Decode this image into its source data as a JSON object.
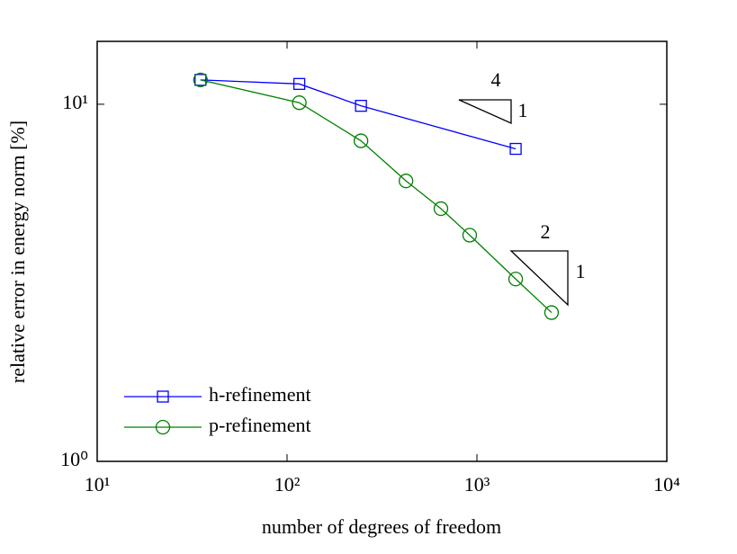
{
  "chart_data": {
    "type": "line",
    "x_label": "number of degrees of freedom",
    "y_label": "relative error in energy norm [%]",
    "log_x": true,
    "log_y": true,
    "grid": false,
    "legend": "lower left",
    "xlim": [
      10,
      10000
    ],
    "xticks": [
      {
        "value": 10,
        "label": "10¹"
      },
      {
        "value": 100,
        "label": "10²"
      },
      {
        "value": 1000,
        "label": "10³"
      },
      {
        "value": 10000,
        "label": "10⁴"
      }
    ],
    "ylim": [
      1,
      15
    ],
    "yticks": [
      {
        "value": 1,
        "label": "10⁰"
      },
      {
        "value": 10,
        "label": "10¹"
      }
    ],
    "series": [
      {
        "name": "h-refinement",
        "color": "#0000ff",
        "marker": "square",
        "x": [
          35,
          116,
          245,
          1600
        ],
        "values": [
          11.7,
          11.4,
          9.9,
          7.5
        ]
      },
      {
        "name": "p-refinement",
        "color": "#008000",
        "marker": "circle",
        "x": [
          35,
          116,
          245,
          423,
          646,
          916,
          1600,
          2472
        ],
        "values": [
          11.7,
          10.1,
          7.9,
          6.1,
          5.1,
          4.3,
          3.24,
          2.61
        ]
      }
    ],
    "annotations": [
      "4",
      "1",
      "2",
      "1"
    ]
  }
}
